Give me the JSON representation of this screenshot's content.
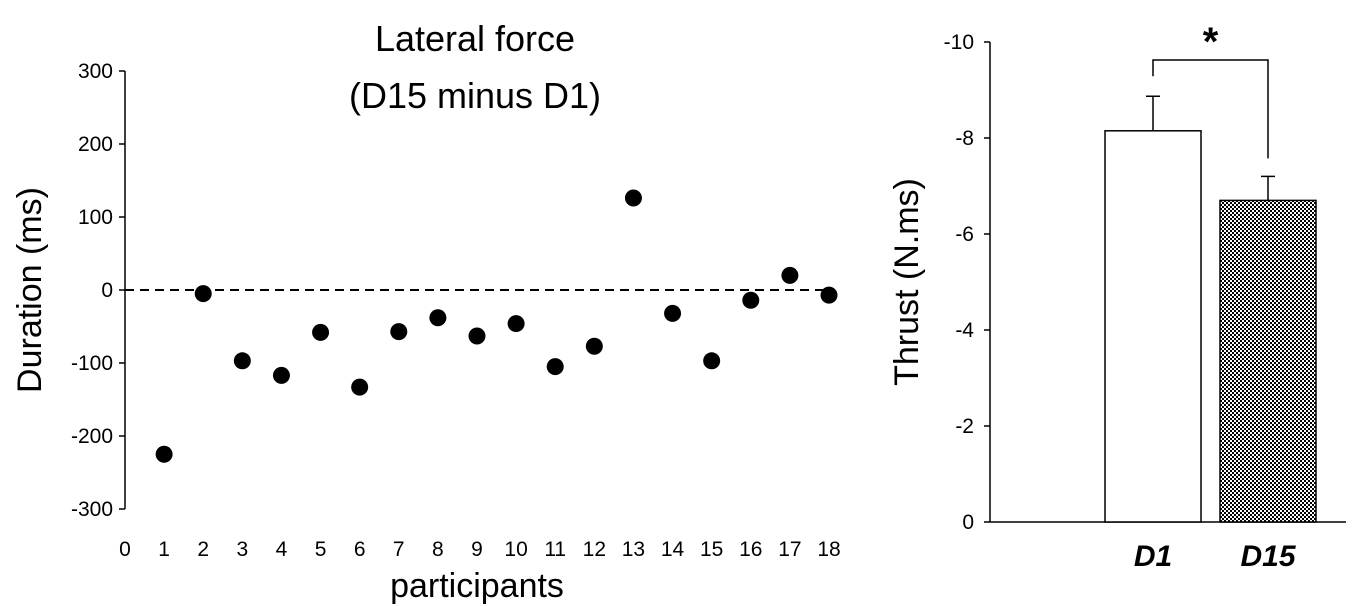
{
  "chart_data": [
    {
      "type": "scatter",
      "title_lines": [
        "Lateral force",
        "(D15 minus D1)"
      ],
      "xlabel": "participants",
      "ylabel": "Duration (ms)",
      "xlim": [
        0,
        18
      ],
      "ylim": [
        -300,
        300
      ],
      "x_ticks": [
        0,
        1,
        2,
        3,
        4,
        5,
        6,
        7,
        8,
        9,
        10,
        11,
        12,
        13,
        14,
        15,
        16,
        17,
        18
      ],
      "y_ticks": [
        300,
        200,
        100,
        0,
        -100,
        -200,
        -300
      ],
      "reference_line": {
        "y": 0,
        "style": "dashed"
      },
      "points": [
        {
          "x": 1,
          "y": -225
        },
        {
          "x": 2,
          "y": -5
        },
        {
          "x": 3,
          "y": -97
        },
        {
          "x": 4,
          "y": -117
        },
        {
          "x": 5,
          "y": -58
        },
        {
          "x": 6,
          "y": -133
        },
        {
          "x": 7,
          "y": -57
        },
        {
          "x": 8,
          "y": -38
        },
        {
          "x": 9,
          "y": -63
        },
        {
          "x": 10,
          "y": -46
        },
        {
          "x": 11,
          "y": -105
        },
        {
          "x": 12,
          "y": -77
        },
        {
          "x": 13,
          "y": 126
        },
        {
          "x": 14,
          "y": -32
        },
        {
          "x": 15,
          "y": -97
        },
        {
          "x": 16,
          "y": -14
        },
        {
          "x": 17,
          "y": 20
        },
        {
          "x": 18,
          "y": -7
        }
      ],
      "marker_color": "#000000"
    },
    {
      "type": "bar",
      "ylabel": "Thrust (N.ms)",
      "categories": [
        "D1",
        "D15"
      ],
      "values": [
        -8.15,
        -6.7
      ],
      "error": [
        0.72,
        0.5
      ],
      "ylim": [
        0,
        -10
      ],
      "y_axis_inverted": true,
      "y_ticks": [
        -10,
        -8,
        -6,
        -4,
        -2,
        0
      ],
      "bar_fills": [
        "white",
        "checkered"
      ],
      "significance": {
        "label": "*",
        "between": [
          "D1",
          "D15"
        ]
      }
    }
  ]
}
